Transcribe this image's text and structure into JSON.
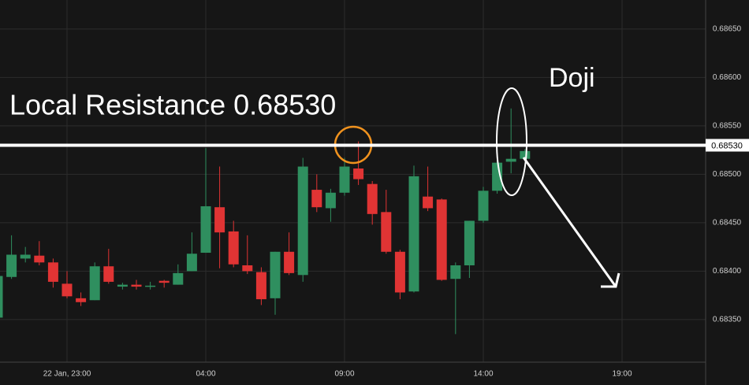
{
  "chart_data": {
    "type": "candlestick",
    "annotations": {
      "resistance_title": "Local Resistance 0.68530",
      "doji": "Doji"
    },
    "resistance": {
      "value": 0.6853,
      "label": "0.68530"
    },
    "categories": [
      null,
      null,
      null,
      null,
      null,
      "22 Jan, 23:00",
      null,
      null,
      null,
      null,
      null,
      null,
      null,
      null,
      null,
      "04:00",
      null,
      null,
      null,
      null,
      null,
      null,
      null,
      null,
      null,
      "09:00",
      null,
      null,
      null,
      null,
      null,
      null,
      null,
      null,
      null,
      "14:00",
      null,
      null,
      null,
      null,
      null,
      null,
      null,
      null,
      null,
      "19:00",
      null,
      null,
      null,
      null,
      null
    ],
    "open": [
      0.68352,
      0.68394,
      0.68413,
      0.68416,
      0.68409,
      0.68387,
      0.68372,
      0.6837,
      0.68405,
      0.68384,
      0.68386,
      0.68384,
      0.6839,
      0.68386,
      0.684,
      0.68419,
      0.68466,
      0.68441,
      0.68406,
      0.68399,
      0.68372,
      0.6842,
      0.68396,
      0.68484,
      0.68465,
      0.68481,
      0.68506,
      0.6849,
      0.68461,
      0.6842,
      0.68379,
      0.68477,
      0.68474,
      0.68392,
      0.68406,
      0.68452,
      0.68483,
      0.68513,
      0.68516,
      null,
      null,
      null,
      null,
      null,
      null,
      null,
      null,
      null,
      null,
      null,
      null
    ],
    "high": [
      0.68397,
      0.68437,
      0.68425,
      0.68431,
      0.68413,
      0.684,
      0.68378,
      0.68409,
      0.68423,
      0.68388,
      0.68391,
      0.68389,
      0.68391,
      0.68407,
      0.6844,
      0.68527,
      0.68508,
      0.68452,
      0.68437,
      0.68404,
      0.6842,
      0.6844,
      0.68517,
      0.685,
      0.68485,
      0.68517,
      0.68534,
      0.68493,
      0.68484,
      0.68422,
      0.68509,
      0.68508,
      0.68475,
      0.68409,
      0.68452,
      0.68487,
      0.68514,
      0.68568,
      0.68526,
      null,
      null,
      null,
      null,
      null,
      null,
      null,
      null,
      null,
      null,
      null,
      null
    ],
    "low": [
      0.68352,
      0.68392,
      0.68409,
      0.68406,
      0.68383,
      0.68372,
      0.68364,
      0.6837,
      0.68387,
      0.68381,
      0.68381,
      0.68381,
      0.68383,
      0.68386,
      0.684,
      0.68419,
      0.68403,
      0.68404,
      0.68397,
      0.68365,
      0.68355,
      0.68396,
      0.68389,
      0.68461,
      0.68451,
      0.68478,
      0.68489,
      0.68448,
      0.68418,
      0.68371,
      0.68378,
      0.68462,
      0.6839,
      0.68335,
      0.68393,
      0.6845,
      0.6848,
      0.68501,
      0.68516,
      null,
      null,
      null,
      null,
      null,
      null,
      null,
      null,
      null,
      null,
      null,
      null
    ],
    "close": [
      0.68395,
      0.68417,
      0.68417,
      0.68409,
      0.68389,
      0.68374,
      0.68368,
      0.68405,
      0.68389,
      0.68386,
      0.68384,
      0.68385,
      0.68388,
      0.68398,
      0.68418,
      0.68467,
      0.6844,
      0.68407,
      0.684,
      0.68371,
      0.6842,
      0.68398,
      0.68508,
      0.68466,
      0.68481,
      0.68508,
      0.68495,
      0.68459,
      0.6842,
      0.68378,
      0.68498,
      0.68465,
      0.68391,
      0.68406,
      0.68452,
      0.68483,
      0.68512,
      0.68516,
      0.68524,
      null,
      null,
      null,
      null,
      null,
      null,
      null,
      null,
      null,
      null,
      null,
      null
    ],
    "up_color": "#2f8f5f",
    "down_color": "#e03434",
    "ylim": [
      0.68306,
      0.6868
    ],
    "yticks": [
      {
        "value": 0.6835,
        "label": "0.68350"
      },
      {
        "value": 0.684,
        "label": "0.68400"
      },
      {
        "value": 0.6845,
        "label": "0.68450"
      },
      {
        "value": 0.685,
        "label": "0.68500"
      },
      {
        "value": 0.6855,
        "label": "0.68550"
      },
      {
        "value": 0.686,
        "label": "0.68600"
      },
      {
        "value": 0.6865,
        "label": "0.68650"
      }
    ],
    "grid": true
  }
}
